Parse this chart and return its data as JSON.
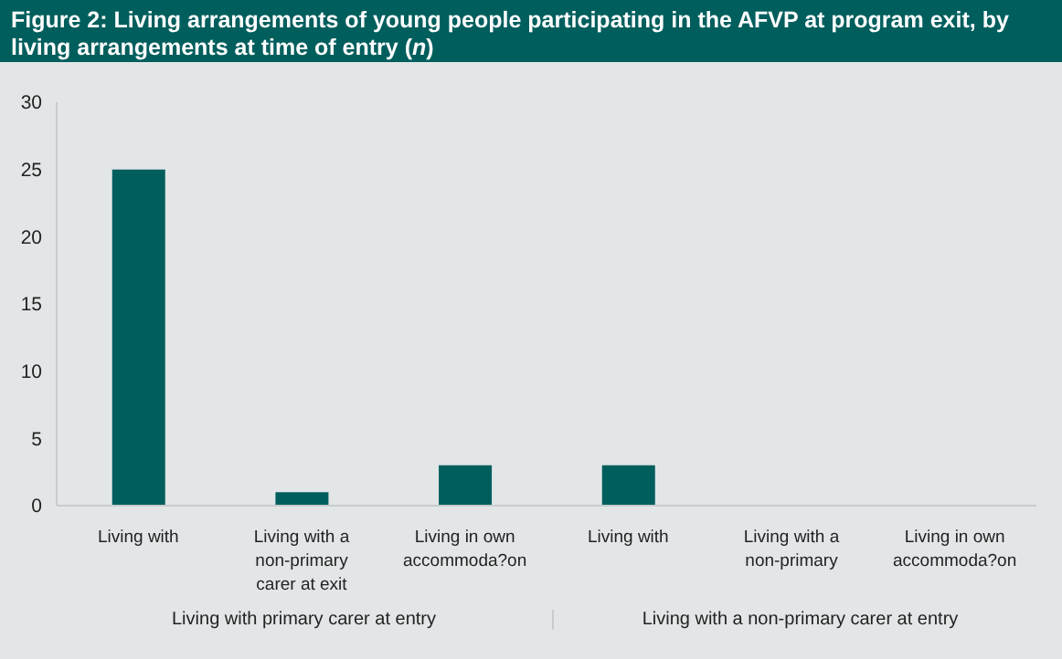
{
  "chart_data": {
    "type": "bar",
    "title": "Figure 2: Living arrangements of young people participating in the AFVP at program exit, by living arrangements at time of entry (n)",
    "categories": [
      "Living with",
      "Living with a non-primary carer at exit",
      "Living in own accommoda?on",
      "Living with",
      "Living with a non-primary",
      "Living in own accommoda?on"
    ],
    "values": [
      25,
      1,
      3,
      3,
      0,
      0
    ],
    "color": "#005e5d",
    "ylim": [
      0,
      30
    ],
    "yticks": [
      0,
      5,
      10,
      15,
      20,
      25,
      30
    ],
    "annotations": [
      "Living with primary carer at entry",
      "Living with a non-primary carer at entry"
    ]
  }
}
